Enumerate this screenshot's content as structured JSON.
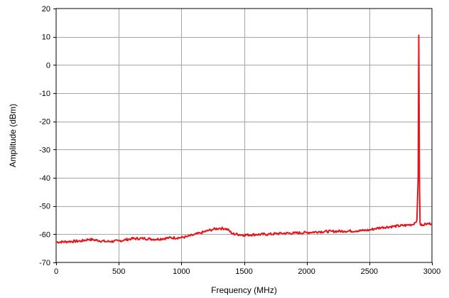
{
  "chart_data": {
    "type": "line",
    "title": "",
    "xlabel": "Frequency (MHz)",
    "ylabel": "Amplitude (dBm)",
    "xlim": [
      0,
      3000
    ],
    "ylim": [
      -70,
      20
    ],
    "xticks": [
      0,
      500,
      1000,
      1500,
      2000,
      2500,
      3000
    ],
    "yticks": [
      20,
      10,
      0,
      -10,
      -20,
      -30,
      -40,
      -50,
      -60,
      -70
    ],
    "grid": true,
    "legend": "none",
    "colors": {
      "line": "#e8141c",
      "grid": "#a6a6a6",
      "axis": "#000000"
    },
    "series": [
      {
        "x": [
          0,
          100,
          200,
          260,
          300,
          400,
          500,
          600,
          700,
          800,
          900,
          1000,
          1050,
          1100,
          1150,
          1200,
          1250,
          1300,
          1350,
          1380,
          1400,
          1500,
          1600,
          1700,
          1800,
          1900,
          2000,
          2100,
          2200,
          2300,
          2400,
          2450,
          2500,
          2550,
          2600,
          2700,
          2800,
          2850,
          2880,
          2890,
          2895,
          2900,
          2905,
          2910,
          2920,
          2950,
          3000
        ],
        "y": [
          -62.8,
          -62.6,
          -62.4,
          -61.8,
          -62.0,
          -62.6,
          -62.4,
          -61.6,
          -61.5,
          -61.8,
          -61.3,
          -61.2,
          -60.8,
          -60.2,
          -59.6,
          -58.9,
          -58.3,
          -57.9,
          -58.0,
          -58.5,
          -59.8,
          -60.3,
          -60.1,
          -60.0,
          -59.7,
          -59.6,
          -59.4,
          -59.1,
          -59.0,
          -58.9,
          -58.8,
          -58.7,
          -58.5,
          -58.0,
          -57.6,
          -57.2,
          -56.8,
          -56.5,
          -55.0,
          -40.0,
          10.5,
          -40.0,
          -56.0,
          -56.8,
          -56.9,
          -56.4,
          -56.2
        ]
      }
    ]
  }
}
